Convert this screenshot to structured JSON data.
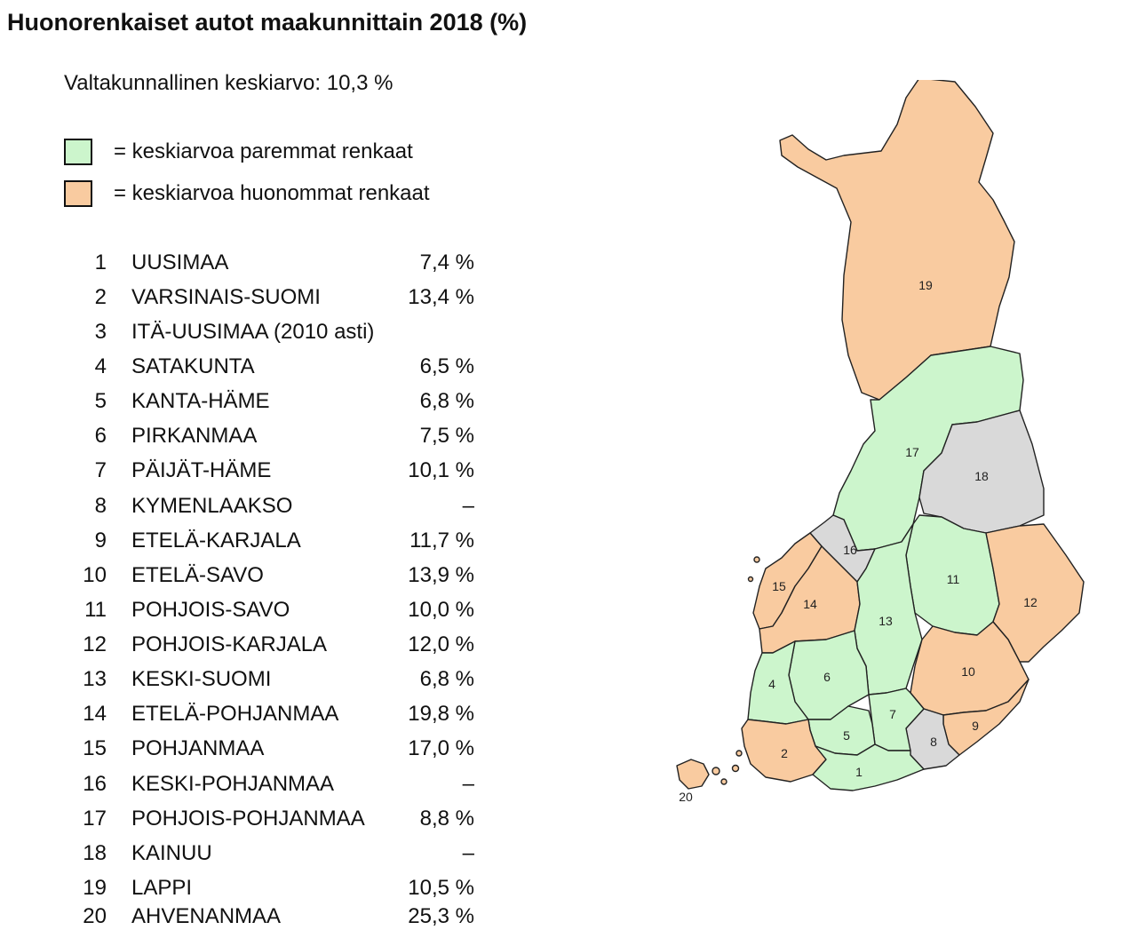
{
  "title": "Huonorenkaiset autot maakunnittain 2018 (%)",
  "average_text": "Valtakunnallinen keskiarvo: 10,3 %",
  "colors": {
    "better": "#ccf5cc",
    "worse": "#f9cba0",
    "no_data": "#d9d9d9"
  },
  "legend": [
    {
      "label": "= keskiarvoa paremmat renkaat",
      "color": "#ccf5cc"
    },
    {
      "label": "= keskiarvoa huonommat renkaat",
      "color": "#f9cba0"
    }
  ],
  "regions": [
    {
      "num": "1",
      "name": "UUSIMAA",
      "value": "7,4 %",
      "status": "better"
    },
    {
      "num": "2",
      "name": "VARSINAIS-SUOMI",
      "value": "13,4 %",
      "status": "worse"
    },
    {
      "num": "3",
      "name": "ITÄ-UUSIMAA (2010 asti)",
      "value": "",
      "status": ""
    },
    {
      "num": "4",
      "name": "SATAKUNTA",
      "value": "6,5 %",
      "status": "better"
    },
    {
      "num": "5",
      "name": "KANTA-HÄME",
      "value": "6,8 %",
      "status": "better"
    },
    {
      "num": "6",
      "name": "PIRKANMAA",
      "value": "7,5 %",
      "status": "better"
    },
    {
      "num": "7",
      "name": "PÄIJÄT-HÄME",
      "value": "10,1 %",
      "status": "better"
    },
    {
      "num": "8",
      "name": "KYMENLAAKSO",
      "value": "–",
      "status": "no_data"
    },
    {
      "num": "9",
      "name": "ETELÄ-KARJALA",
      "value": "11,7 %",
      "status": "worse"
    },
    {
      "num": "10",
      "name": "ETELÄ-SAVO",
      "value": "13,9 %",
      "status": "worse"
    },
    {
      "num": "11",
      "name": "POHJOIS-SAVO",
      "value": "10,0 %",
      "status": "better"
    },
    {
      "num": "12",
      "name": "POHJOIS-KARJALA",
      "value": "12,0 %",
      "status": "worse"
    },
    {
      "num": "13",
      "name": "KESKI-SUOMI",
      "value": "6,8 %",
      "status": "better"
    },
    {
      "num": "14",
      "name": "ETELÄ-POHJANMAA",
      "value": "19,8 %",
      "status": "worse"
    },
    {
      "num": "15",
      "name": "POHJANMAA",
      "value": "17,0 %",
      "status": "worse"
    },
    {
      "num": "16",
      "name": "KESKI-POHJANMAA",
      "value": "–",
      "status": "no_data"
    },
    {
      "num": "17",
      "name": "POHJOIS-POHJANMAA",
      "value": "8,8 %",
      "status": "better"
    },
    {
      "num": "18",
      "name": "KAINUU",
      "value": "–",
      "status": "no_data"
    },
    {
      "num": "19",
      "name": "LAPPI",
      "value": "10,5 %",
      "status": "worse"
    },
    {
      "num": "20",
      "name": "AHVENANMAA",
      "value": "25,3 %",
      "status": "worse"
    }
  ]
}
